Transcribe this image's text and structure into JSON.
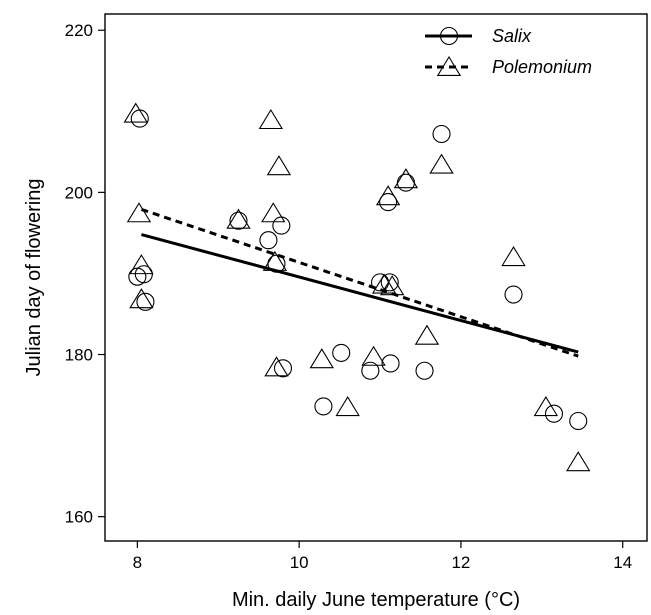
{
  "chart_data": {
    "type": "scatter",
    "xlabel": "Min. daily June temperature (°C)",
    "ylabel": "Julian day of flowering",
    "xlim": [
      7.6,
      14.3
    ],
    "ylim": [
      157,
      222
    ],
    "xticks": [
      8,
      10,
      12,
      14
    ],
    "yticks": [
      160,
      180,
      200,
      220
    ],
    "grid": false,
    "legend_position": "top-right",
    "series": [
      {
        "name": "Salix",
        "marker": "circle",
        "line_style": "solid",
        "points": [
          {
            "x": 8.03,
            "y": 209.1
          },
          {
            "x": 8.0,
            "y": 189.6
          },
          {
            "x": 8.08,
            "y": 189.9
          },
          {
            "x": 8.1,
            "y": 186.5
          },
          {
            "x": 9.25,
            "y": 196.5
          },
          {
            "x": 9.62,
            "y": 194.1
          },
          {
            "x": 9.78,
            "y": 195.9
          },
          {
            "x": 9.72,
            "y": 191.2
          },
          {
            "x": 9.8,
            "y": 178.3
          },
          {
            "x": 10.3,
            "y": 173.6
          },
          {
            "x": 10.52,
            "y": 180.2
          },
          {
            "x": 10.88,
            "y": 178.0
          },
          {
            "x": 11.0,
            "y": 188.9
          },
          {
            "x": 11.1,
            "y": 198.8
          },
          {
            "x": 11.12,
            "y": 188.9
          },
          {
            "x": 11.13,
            "y": 178.9
          },
          {
            "x": 11.32,
            "y": 201.2
          },
          {
            "x": 11.55,
            "y": 178.0
          },
          {
            "x": 11.76,
            "y": 207.2
          },
          {
            "x": 12.65,
            "y": 187.4
          },
          {
            "x": 13.15,
            "y": 172.7
          },
          {
            "x": 13.45,
            "y": 171.8
          }
        ],
        "fit": {
          "x": [
            8.05,
            13.45
          ],
          "y": [
            194.8,
            180.3
          ]
        }
      },
      {
        "name": "Polemonium",
        "marker": "triangle",
        "line_style": "dashed",
        "points": [
          {
            "x": 7.98,
            "y": 209.6
          },
          {
            "x": 8.02,
            "y": 197.3
          },
          {
            "x": 8.05,
            "y": 190.9
          },
          {
            "x": 8.05,
            "y": 186.7
          },
          {
            "x": 9.25,
            "y": 196.5
          },
          {
            "x": 9.65,
            "y": 208.8
          },
          {
            "x": 9.68,
            "y": 197.3
          },
          {
            "x": 9.75,
            "y": 203.1
          },
          {
            "x": 9.7,
            "y": 191.3
          },
          {
            "x": 9.72,
            "y": 178.3
          },
          {
            "x": 10.28,
            "y": 179.3
          },
          {
            "x": 10.6,
            "y": 173.4
          },
          {
            "x": 10.92,
            "y": 179.6
          },
          {
            "x": 11.05,
            "y": 188.5
          },
          {
            "x": 11.1,
            "y": 199.4
          },
          {
            "x": 11.15,
            "y": 188.3
          },
          {
            "x": 11.32,
            "y": 201.5
          },
          {
            "x": 11.58,
            "y": 182.2
          },
          {
            "x": 11.76,
            "y": 203.3
          },
          {
            "x": 12.65,
            "y": 191.9
          },
          {
            "x": 13.05,
            "y": 173.4
          },
          {
            "x": 13.45,
            "y": 166.6
          }
        ],
        "fit": {
          "x": [
            8.05,
            13.45
          ],
          "y": [
            197.9,
            179.8
          ]
        }
      }
    ]
  }
}
